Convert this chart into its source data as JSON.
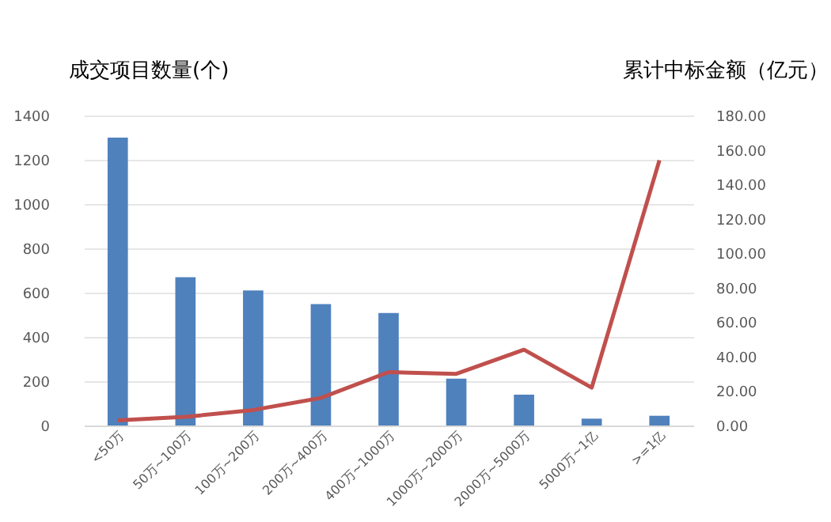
{
  "chart_data": {
    "type": "bar",
    "ylabel": "成交项目数量(个)",
    "y2label": "累计中标金额（亿元）",
    "categories": [
      "<50万",
      "50万~100万",
      "100万~200万",
      "200万~400万",
      "400万~1000万",
      "1000万~2000万",
      "2000万~5000万",
      "5000万~1亿",
      ">=1亿"
    ],
    "series": [
      {
        "color": "#4f81bd",
        "values": [
          1300,
          670,
          610,
          548,
          508,
          212,
          139,
          31,
          44
        ]
      },
      {
        "type": "line",
        "axis": "y2",
        "color": "#c0504d",
        "values": [
          3,
          5,
          9,
          16,
          31,
          30,
          44,
          22,
          154
        ]
      }
    ],
    "ylim": [
      0,
      1400
    ],
    "yticks": [
      0,
      200,
      400,
      600,
      800,
      1000,
      1200,
      1400
    ],
    "y2lim": [
      0,
      180
    ],
    "y2ticks": [
      {
        "value": 0,
        "label": "0.00"
      },
      {
        "value": 20,
        "label": "20.00"
      },
      {
        "value": 40,
        "label": "40.00"
      },
      {
        "value": 60,
        "label": "60.00"
      },
      {
        "value": 80,
        "label": "80.00"
      },
      {
        "value": 100,
        "label": "100.00"
      },
      {
        "value": 120,
        "label": "120.00"
      },
      {
        "value": 140,
        "label": "140.00"
      },
      {
        "value": 160,
        "label": "160.00"
      },
      {
        "value": 180,
        "label": "180.00"
      }
    ],
    "grid": true
  }
}
